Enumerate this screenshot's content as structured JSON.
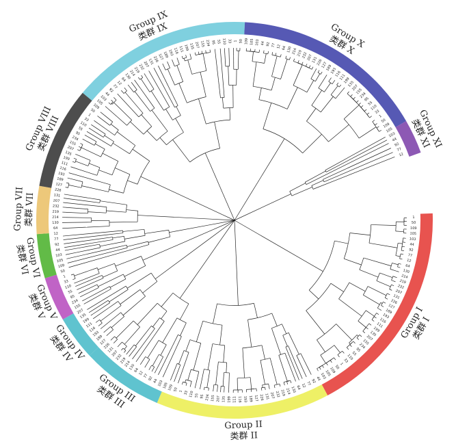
{
  "figure": {
    "groups": [
      {
        "id": "I",
        "cn": "类群 I",
        "en": "Group I",
        "color": "#e8534f",
        "start": 88,
        "end": 152
      },
      {
        "id": "II",
        "cn": "类群 II",
        "en": "Group II",
        "color": "#eef066",
        "start": 152,
        "end": 203
      },
      {
        "id": "III",
        "cn": "类群 III",
        "en": "Group III",
        "color": "#5fc3cf",
        "start": 203,
        "end": 227
      },
      {
        "id": "IV",
        "cn": "类群 IV",
        "en": "Group IV",
        "color": "#5fc3cf",
        "start": 227,
        "end": 240
      },
      {
        "id": "V",
        "cn": "类群 V",
        "en": "Group V",
        "color": "#c063c6",
        "start": 240,
        "end": 253
      },
      {
        "id": "VI",
        "cn": "类群 VI",
        "en": "Group VI",
        "color": "#62bb47",
        "start": 253,
        "end": 266
      },
      {
        "id": "VII",
        "cn": "类群 VII",
        "en": "Group VII",
        "color": "#edc87a",
        "start": 266,
        "end": 280
      },
      {
        "id": "VIII",
        "cn": "类群 VIII",
        "en": "Group VIII",
        "color": "#4d4d4d",
        "start": 280,
        "end": 310
      },
      {
        "id": "IX",
        "cn": "类群 IX",
        "en": "Group IX",
        "color": "#7fd0df",
        "start": 310,
        "end": 363
      },
      {
        "id": "X",
        "cn": "类群 X",
        "en": "Group X",
        "color": "#5659b4",
        "start": 363,
        "end": 420
      },
      {
        "id": "XI",
        "cn": "类群 XI",
        "en": "Group XI",
        "color": "#8d59b4",
        "start": 420,
        "end": 430
      }
    ],
    "leaf_samples": [
      "1",
      "50",
      "109",
      "105",
      "103",
      "44",
      "92",
      "77",
      "12",
      "64",
      "130",
      "214",
      "219",
      "232",
      "207",
      "131",
      "226",
      "127",
      "189",
      "193",
      "116",
      "111",
      "199",
      "135",
      "207",
      "155",
      "234",
      "95",
      "55",
      "110",
      "33"
    ]
  }
}
